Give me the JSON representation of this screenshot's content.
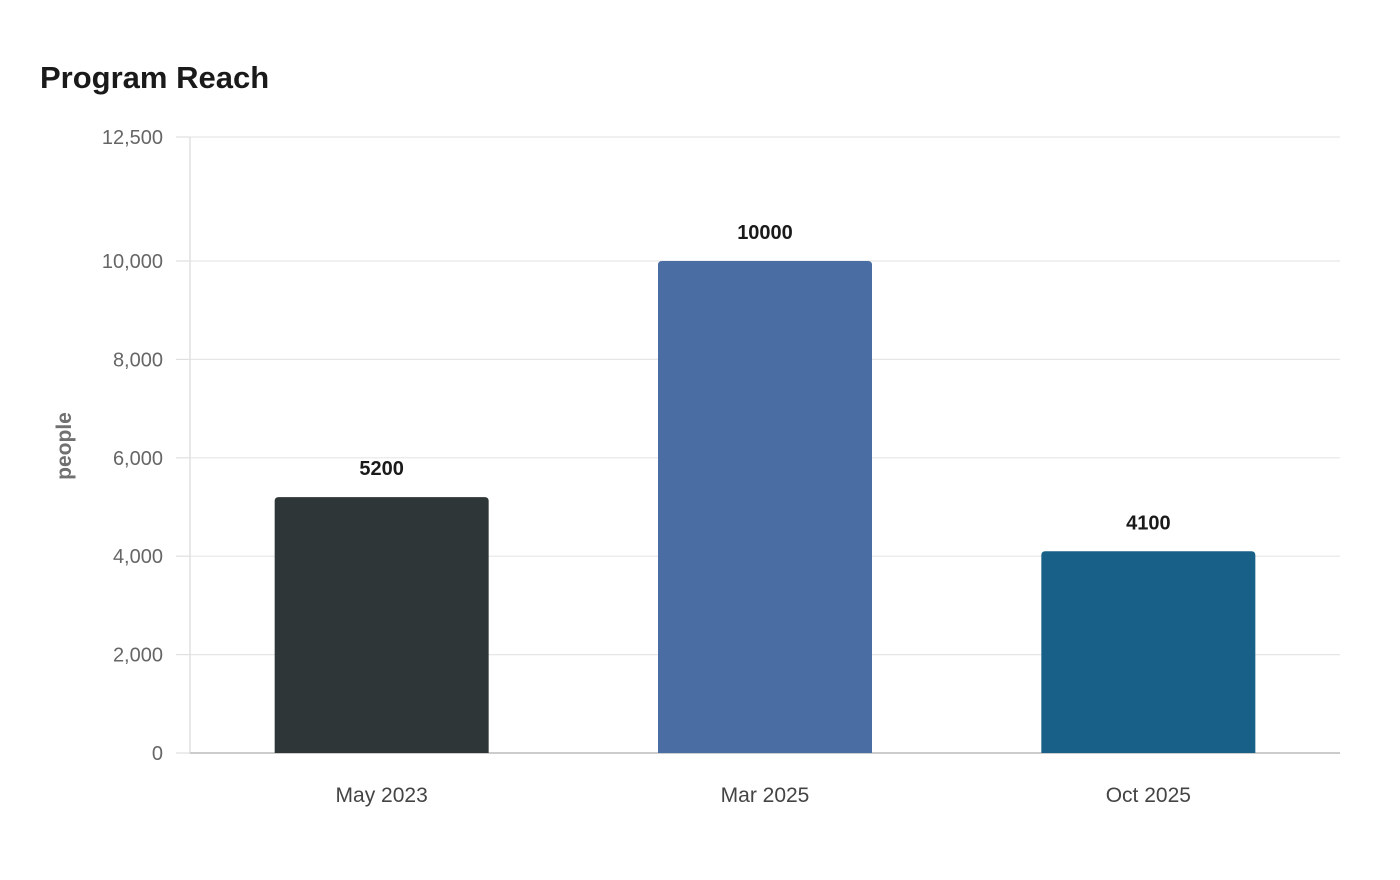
{
  "chart_data": {
    "type": "bar",
    "title": "Program Reach",
    "xlabel": "",
    "ylabel": "people",
    "categories": [
      "May 2023",
      "Mar 2025",
      "Oct 2025"
    ],
    "values": [
      5200,
      10000,
      4100
    ],
    "value_labels": [
      "5200",
      "10000",
      "4100"
    ],
    "bar_colors": [
      "#2e3638",
      "#4a6da3",
      "#186088"
    ],
    "ylim": [
      0,
      12500
    ],
    "yticks": [
      0,
      2000,
      4000,
      6000,
      8000,
      10000,
      12500
    ],
    "ytick_labels": [
      "0",
      "2,000",
      "4,000",
      "6,000",
      "8,000",
      "10,000",
      "12,500"
    ],
    "grid": true,
    "legend": "none"
  }
}
